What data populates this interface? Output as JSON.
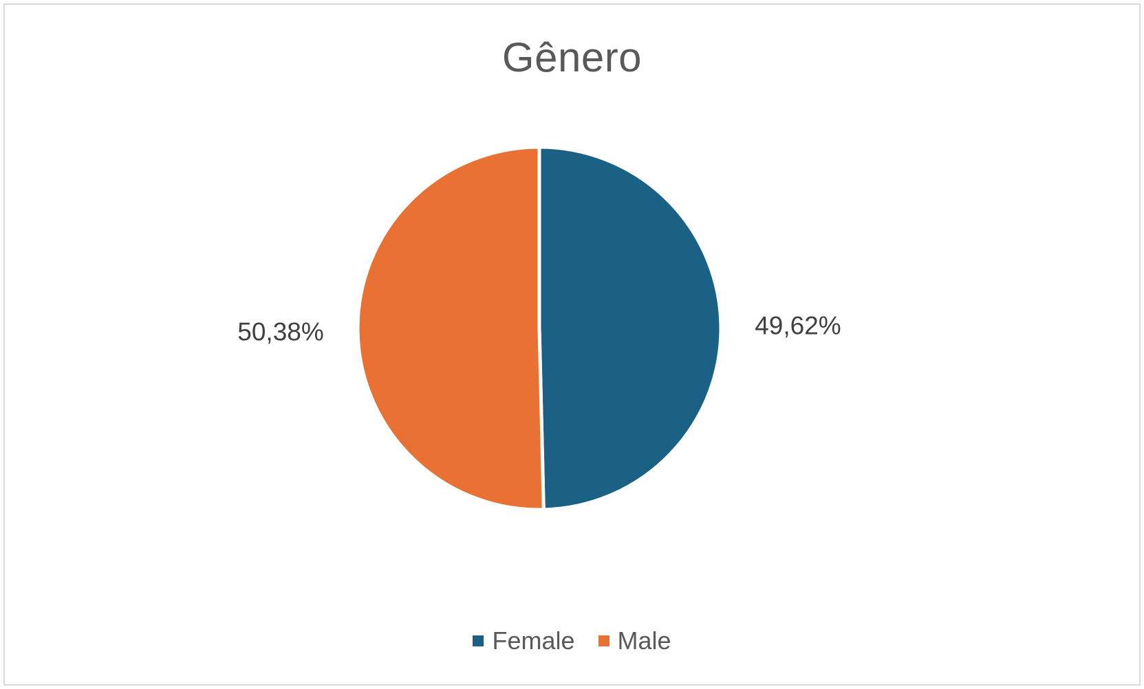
{
  "chart_data": {
    "type": "pie",
    "title": "Gênero",
    "categories": [
      "Female",
      "Male"
    ],
    "values": [
      49.62,
      50.38
    ],
    "labels": [
      "49,62%",
      "50,38%"
    ],
    "colors": [
      "#1b6185",
      "#e87133"
    ],
    "start_angle_deg": 0,
    "direction": "clockwise",
    "legend_position": "bottom"
  }
}
